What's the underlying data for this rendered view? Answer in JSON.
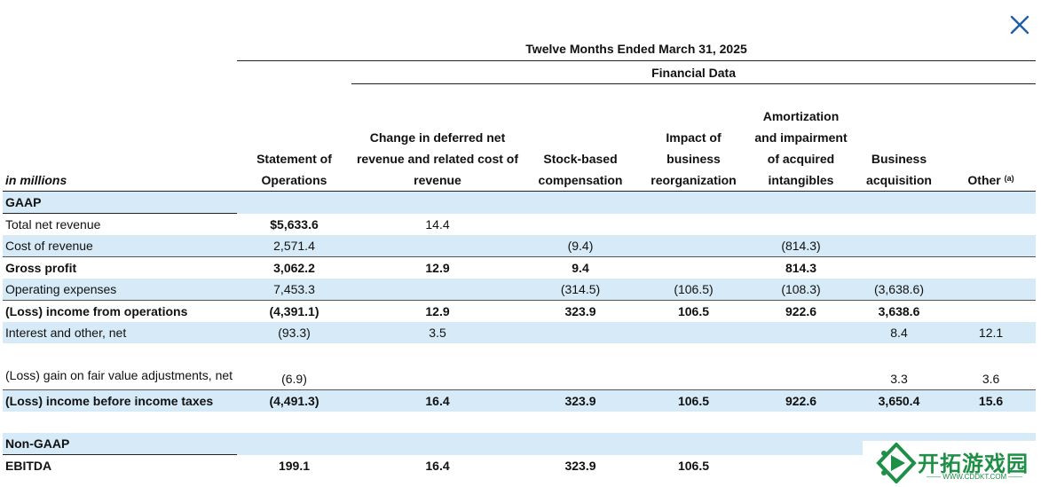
{
  "header": {
    "period": "Twelve Months Ended March 31, 2025",
    "financial_data": "Financial Data",
    "units": "in millions",
    "columns": [
      "Statement of Operations",
      "Change in deferred net revenue and related cost of revenue",
      "Stock-based compensation",
      "Impact of business reorganization",
      "Amortization and impairment of acquired intangibles",
      "Business acquisition",
      "Other"
    ],
    "other_footnote": "(a)"
  },
  "rows": {
    "gaap": "GAAP",
    "total_net_revenue": {
      "label": "Total net revenue",
      "values": [
        "$5,633.6",
        "14.4",
        "",
        "",
        "",
        "",
        ""
      ]
    },
    "cost_of_revenue": {
      "label": "Cost of revenue",
      "values": [
        "2,571.4",
        "",
        "(9.4)",
        "",
        "(814.3)",
        "",
        ""
      ]
    },
    "gross_profit": {
      "label": "Gross profit",
      "values": [
        "3,062.2",
        "12.9",
        "9.4",
        "",
        "814.3",
        "",
        ""
      ]
    },
    "operating_expenses": {
      "label": "Operating expenses",
      "values": [
        "7,453.3",
        "",
        "(314.5)",
        "(106.5)",
        "(108.3)",
        "(3,638.6)",
        ""
      ]
    },
    "income_from_operations": {
      "label": "(Loss) income from operations",
      "values": [
        "(4,391.1)",
        "12.9",
        "323.9",
        "106.5",
        "922.6",
        "3,638.6",
        ""
      ]
    },
    "interest_and_other": {
      "label": "Interest and other, net",
      "values": [
        "(93.3)",
        "3.5",
        "",
        "",
        "",
        "8.4",
        "12.1"
      ]
    },
    "fair_value_adjustments": {
      "label": "(Loss) gain on fair value adjustments, net",
      "values": [
        "(6.9)",
        "",
        "",
        "",
        "",
        "3.3",
        "3.6"
      ]
    },
    "income_before_taxes": {
      "label": "(Loss) income before income taxes",
      "values": [
        "(4,491.3)",
        "16.4",
        "323.9",
        "106.5",
        "922.6",
        "3,650.4",
        "15.6"
      ]
    },
    "non_gaap": "Non-GAAP",
    "ebitda": {
      "label": "EBITDA",
      "values": [
        "199.1",
        "16.4",
        "323.9",
        "106.5",
        "",
        "",
        ""
      ]
    }
  },
  "watermark": {
    "title": "开拓游戏园",
    "subtitle": "—— WWW.CDDKT.COM ——"
  },
  "icons": {
    "close": "close-icon",
    "logo": "logo-icon"
  },
  "colors": {
    "shade": "#d6ebf7",
    "close_icon": "#1f5fa8",
    "watermark": "#1e8f47"
  }
}
